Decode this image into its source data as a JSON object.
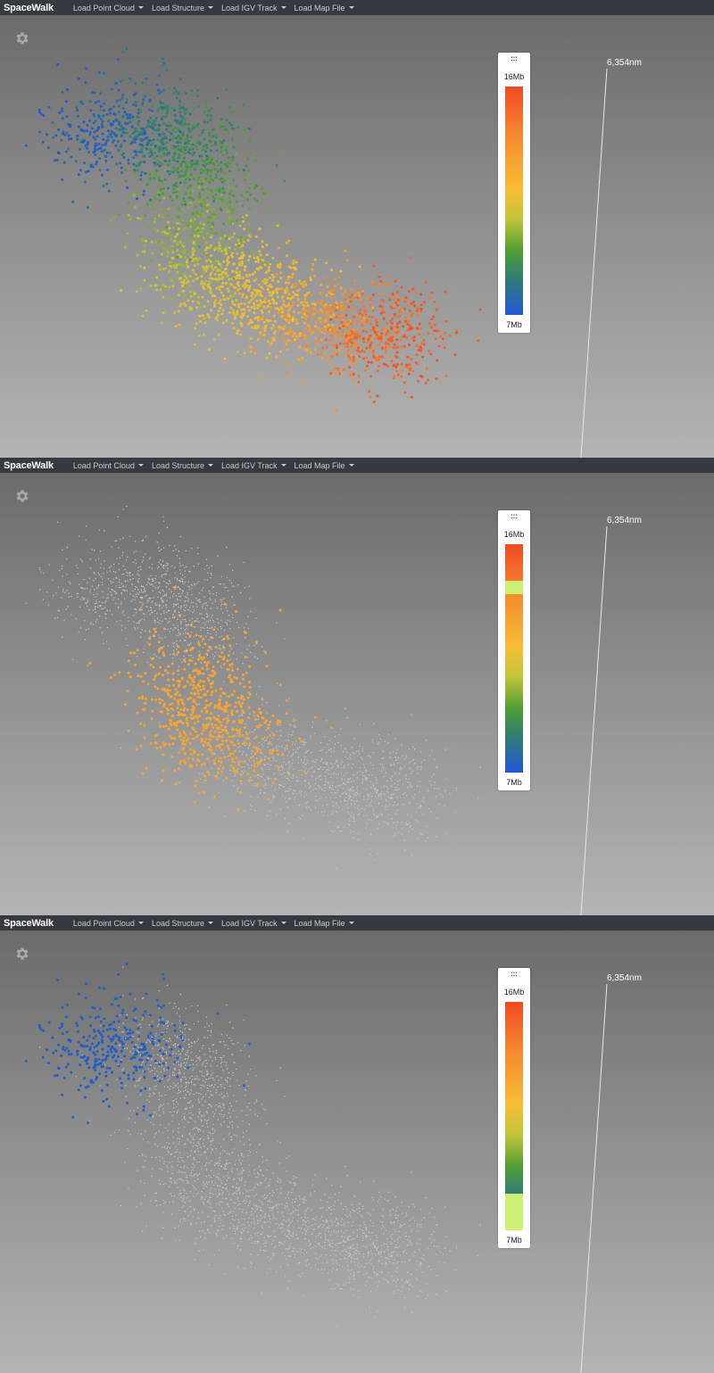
{
  "app": {
    "brand": "SpaceWalk",
    "menus": [
      {
        "label": "Load Point Cloud"
      },
      {
        "label": "Load Structure"
      },
      {
        "label": "Load IGV Track"
      },
      {
        "label": "Load Map File"
      }
    ]
  },
  "panels": [
    {
      "legend": {
        "top_label": "16Mb",
        "bottom_label": "7Mb",
        "selection": null
      },
      "scale_label": "6,354nm",
      "highlight": "all"
    },
    {
      "legend": {
        "top_label": "16Mb",
        "bottom_label": "7Mb",
        "selection": {
          "from_fraction": 0.78,
          "to_fraction": 0.84,
          "color": "#ccf074"
        }
      },
      "scale_label": "6,354nm",
      "highlight": {
        "cluster": "middle",
        "color": "#f7a530"
      }
    },
    {
      "legend": {
        "top_label": "16Mb",
        "bottom_label": "7Mb",
        "selection": {
          "from_fraction": 0.0,
          "to_fraction": 0.16,
          "color": "#ccf074"
        }
      },
      "scale_label": "6,354nm",
      "highlight": {
        "cluster": "start",
        "color": "#1f5fc8"
      }
    }
  ],
  "colors": {
    "navbar": "#343a40",
    "dimmed_points": "#c8c8c8",
    "ramp": [
      "#2356d8",
      "#2f7b7a",
      "#4f9e34",
      "#c3c53a",
      "#f6bd35",
      "#f68b2e",
      "#f24a22"
    ]
  },
  "icons": {
    "settings": "gear-icon",
    "legend_handle": "drag-handle-icon"
  }
}
